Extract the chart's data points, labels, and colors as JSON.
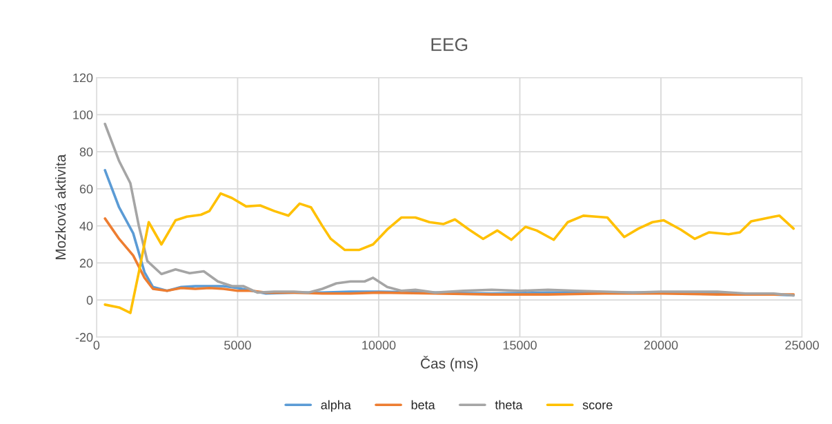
{
  "chart_data": {
    "type": "line",
    "title": "EEG",
    "xlabel": "Čas (ms)",
    "ylabel": "Mozková aktivita",
    "xlim": [
      0,
      25000
    ],
    "xticks": [
      0,
      5000,
      10000,
      15000,
      20000,
      25000
    ],
    "ylim": [
      -20,
      120
    ],
    "yticks": [
      -20,
      0,
      20,
      40,
      60,
      80,
      100,
      120
    ],
    "grid": true,
    "legend": "bottom",
    "marker": "none",
    "line_style": "solid",
    "series": [
      {
        "name": "alpha",
        "color": "#5b9bd5",
        "x": [
          300,
          800,
          1300,
          1700,
          2000,
          2500,
          3000,
          3500,
          4000,
          4500,
          5000,
          5500,
          6000,
          7000,
          8000,
          9000,
          10000,
          12000,
          14000,
          16000,
          18000,
          20000,
          22000,
          24000,
          24700
        ],
        "values": [
          70,
          50,
          36,
          15,
          7,
          5,
          7,
          7.5,
          7.5,
          7.5,
          6.5,
          5,
          3.5,
          4,
          4,
          4.5,
          4.5,
          4,
          3.5,
          4,
          4,
          4,
          3.5,
          3,
          2.5
        ]
      },
      {
        "name": "beta",
        "color": "#ed7d31",
        "x": [
          300,
          800,
          1300,
          1700,
          2000,
          2500,
          3000,
          3500,
          4000,
          4500,
          5000,
          5500,
          6000,
          7000,
          8000,
          9000,
          10000,
          12000,
          14000,
          16000,
          18000,
          20000,
          22000,
          24000,
          24700
        ],
        "values": [
          44,
          33,
          24,
          12,
          6,
          5,
          6.5,
          6,
          6.5,
          6,
          5,
          5,
          4,
          4,
          3.5,
          3.5,
          4,
          3.5,
          3,
          3,
          3.5,
          3.5,
          3,
          3,
          3
        ]
      },
      {
        "name": "theta",
        "color": "#a5a5a5",
        "x": [
          300,
          800,
          1200,
          1500,
          1800,
          2300,
          2800,
          3300,
          3800,
          4300,
          4800,
          5200,
          5700,
          6300,
          7000,
          7500,
          8000,
          8500,
          9000,
          9500,
          9800,
          10300,
          10800,
          11300,
          12000,
          13000,
          14000,
          15000,
          16000,
          17000,
          18000,
          19000,
          20000,
          21000,
          22000,
          23000,
          24000,
          24700
        ],
        "values": [
          95,
          75,
          63,
          40,
          21,
          14,
          16.5,
          14.5,
          15.5,
          10,
          7.5,
          7.5,
          4,
          4.5,
          4.5,
          4,
          6,
          9,
          10,
          10,
          12,
          7,
          5,
          5.5,
          4,
          5,
          5.5,
          5,
          5.5,
          5,
          4.5,
          4,
          4.5,
          4.5,
          4.5,
          3.5,
          3.5,
          2.5
        ]
      },
      {
        "name": "score",
        "color": "#ffc000",
        "x": [
          300,
          800,
          1200,
          1500,
          1850,
          2300,
          2800,
          3200,
          3700,
          4000,
          4400,
          4800,
          5300,
          5800,
          6300,
          6800,
          7200,
          7600,
          8000,
          8300,
          8800,
          9300,
          9800,
          10300,
          10800,
          11300,
          11800,
          12300,
          12700,
          13200,
          13700,
          14200,
          14700,
          15200,
          15600,
          16200,
          16700,
          17250,
          17700,
          18100,
          18700,
          19200,
          19700,
          20100,
          20700,
          21200,
          21700,
          22400,
          22800,
          23200,
          24000,
          24200,
          24700
        ],
        "values": [
          -2.5,
          -4,
          -7,
          15,
          42,
          30,
          43,
          45,
          46,
          48,
          57.5,
          55,
          50.5,
          51,
          48,
          45.5,
          52,
          50,
          40,
          33,
          27,
          27,
          30,
          38,
          44.5,
          44.5,
          42,
          41,
          43.5,
          38,
          33,
          37.5,
          32.5,
          39.5,
          37.5,
          32.5,
          42,
          45.5,
          45,
          44.5,
          34,
          38.5,
          42,
          43,
          38,
          33,
          36.5,
          35.5,
          36.5,
          42.5,
          45,
          45.5,
          38.5
        ]
      }
    ]
  }
}
